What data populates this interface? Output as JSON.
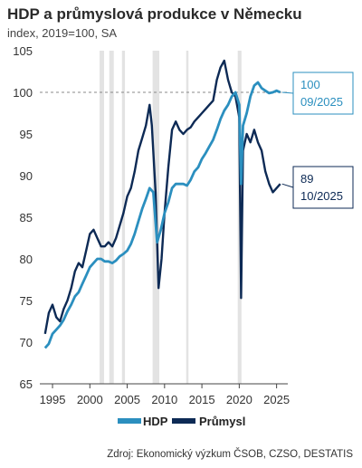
{
  "title": "HDP a průmyslová produkce v Německu",
  "subtitle": "index, 2019=100, SA",
  "source": "Zdroj: Ekonomický výzkum ČSOB, CZSO, DESTATIS",
  "colors": {
    "hdp": "#2b8fbf",
    "prumysl": "#0d2a55",
    "recession": "#e3e3e3",
    "ref_line": "#888888"
  },
  "chart_data": {
    "type": "line",
    "title": "HDP a průmyslová produkce v Německu",
    "subtitle": "index, 2019=100, SA",
    "xlim": [
      1993.3,
      2026.5
    ],
    "ylim": [
      65,
      105
    ],
    "x_ticks": [
      1995,
      2000,
      2005,
      2010,
      2015,
      2020,
      2025
    ],
    "y_ticks": [
      65,
      70,
      75,
      80,
      85,
      90,
      95,
      100,
      105
    ],
    "reference_line": 100,
    "grid": false,
    "legend": "bottom",
    "recession_shading": [
      [
        2001.3,
        2001.9
      ],
      [
        2002.6,
        2003.2
      ],
      [
        2004.3,
        2004.7
      ],
      [
        2008.4,
        2009.3
      ],
      [
        2012.9,
        2013.2
      ],
      [
        2019.8,
        2020.3
      ]
    ],
    "series": [
      {
        "name": "HDP",
        "color": "#2b8fbf",
        "x": [
          1994.0,
          1994.5,
          1995.0,
          1995.5,
          1996.0,
          1996.5,
          1997.0,
          1997.5,
          1998.0,
          1998.5,
          1999.0,
          1999.5,
          2000.0,
          2000.5,
          2001.0,
          2001.5,
          2002.0,
          2002.5,
          2003.0,
          2003.5,
          2004.0,
          2004.5,
          2005.0,
          2005.5,
          2006.0,
          2006.5,
          2007.0,
          2007.5,
          2008.0,
          2008.5,
          2009.0,
          2009.5,
          2010.0,
          2010.5,
          2011.0,
          2011.5,
          2012.0,
          2012.5,
          2013.0,
          2013.5,
          2014.0,
          2014.5,
          2015.0,
          2015.5,
          2016.0,
          2016.5,
          2017.0,
          2017.5,
          2018.0,
          2018.5,
          2019.0,
          2019.5,
          2020.0,
          2020.25,
          2020.5,
          2021.0,
          2021.5,
          2022.0,
          2022.5,
          2023.0,
          2023.5,
          2024.0,
          2024.5,
          2025.0,
          2025.5
        ],
        "values": [
          69.3,
          69.8,
          71.0,
          71.5,
          72.0,
          72.7,
          73.7,
          74.5,
          75.5,
          76.0,
          77.0,
          78.0,
          79.0,
          79.5,
          80.0,
          80.0,
          79.7,
          79.7,
          79.5,
          79.8,
          80.3,
          80.6,
          81.0,
          81.8,
          83.0,
          84.5,
          86.0,
          87.2,
          88.5,
          88.0,
          82.0,
          83.5,
          85.5,
          86.8,
          88.5,
          89.0,
          89.0,
          89.0,
          88.8,
          89.5,
          90.5,
          91.0,
          92.0,
          92.7,
          93.5,
          94.3,
          95.5,
          96.8,
          97.8,
          98.5,
          99.5,
          100.0,
          98.5,
          89.0,
          96.0,
          97.5,
          99.5,
          100.8,
          101.2,
          100.5,
          100.2,
          99.9,
          100.0,
          100.2,
          100.0
        ]
      },
      {
        "name": "Průmysl",
        "color": "#0d2a55",
        "x": [
          1994.0,
          1994.5,
          1995.0,
          1995.5,
          1996.0,
          1996.5,
          1997.0,
          1997.5,
          1998.0,
          1998.5,
          1999.0,
          1999.5,
          2000.0,
          2000.5,
          2001.0,
          2001.5,
          2002.0,
          2002.5,
          2003.0,
          2003.5,
          2004.0,
          2004.5,
          2005.0,
          2005.5,
          2006.0,
          2006.5,
          2007.0,
          2007.5,
          2008.0,
          2008.3,
          2008.8,
          2009.2,
          2009.6,
          2010.0,
          2010.5,
          2011.0,
          2011.5,
          2012.0,
          2012.5,
          2013.0,
          2013.5,
          2014.0,
          2014.5,
          2015.0,
          2015.5,
          2016.0,
          2016.5,
          2017.0,
          2017.5,
          2018.0,
          2018.5,
          2019.0,
          2019.5,
          2020.0,
          2020.25,
          2020.5,
          2021.0,
          2021.5,
          2022.0,
          2022.5,
          2023.0,
          2023.5,
          2024.0,
          2024.5,
          2025.0,
          2025.5
        ],
        "values": [
          71.0,
          73.5,
          74.5,
          73.0,
          72.5,
          74.0,
          75.0,
          76.5,
          78.5,
          79.5,
          79.0,
          81.0,
          83.0,
          83.5,
          82.5,
          81.5,
          81.5,
          82.0,
          81.5,
          82.5,
          84.0,
          85.5,
          87.5,
          88.5,
          90.5,
          93.0,
          94.5,
          96.0,
          98.5,
          96.0,
          88.0,
          76.5,
          80.0,
          85.5,
          91.0,
          95.5,
          96.5,
          95.5,
          95.0,
          95.5,
          95.8,
          96.5,
          97.0,
          97.5,
          98.0,
          98.5,
          99.0,
          101.5,
          103.0,
          103.8,
          101.5,
          100.0,
          99.5,
          97.0,
          75.3,
          93.0,
          95.0,
          94.0,
          95.5,
          94.0,
          93.0,
          90.5,
          89.0,
          88.0,
          88.5,
          89.0
        ]
      }
    ],
    "callouts": [
      {
        "series": "HDP",
        "value": "100",
        "date": "09/2025"
      },
      {
        "series": "Průmysl",
        "value": "89",
        "date": "10/2025"
      }
    ]
  }
}
